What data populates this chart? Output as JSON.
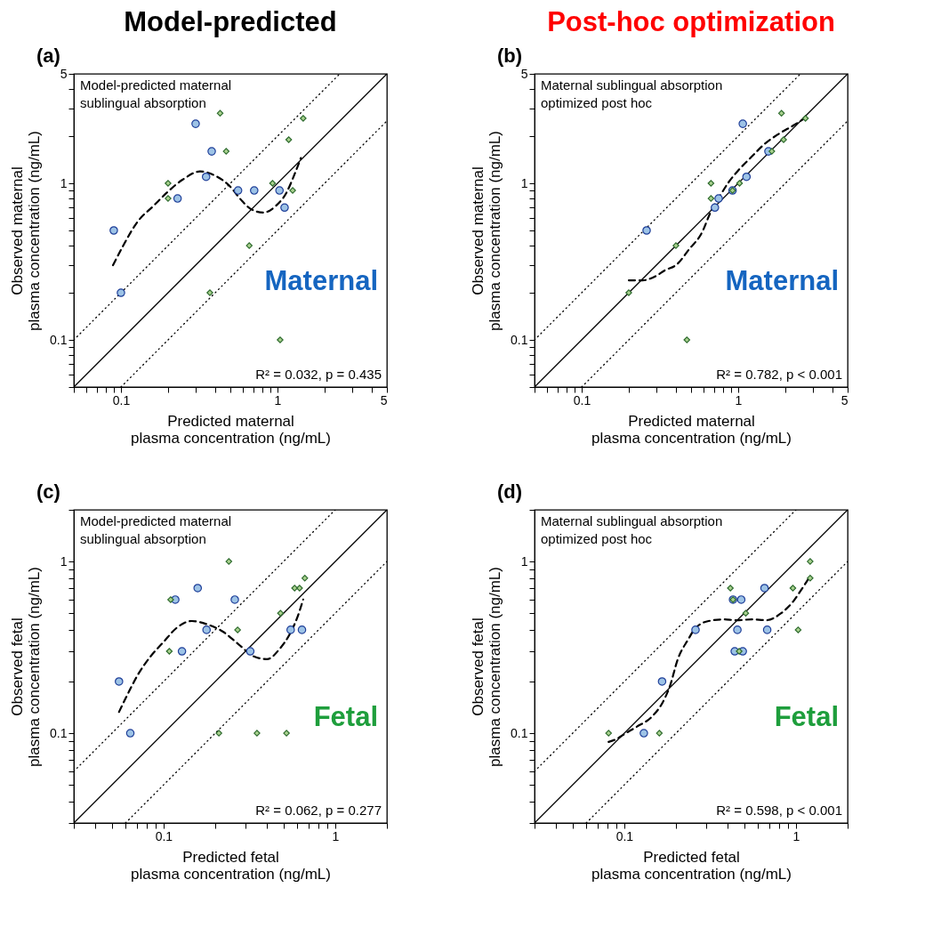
{
  "chart_data": [
    {
      "type": "scatter",
      "title": "Model-predicted",
      "xlabel": "Predicted maternal\nplasma concentration (ng/mL)",
      "ylabel": "Observed maternal\nplasma concentration (ng/mL)",
      "log": "xy",
      "xlim": [
        0.05,
        5
      ],
      "ylim": [
        0.05,
        5
      ],
      "xticks": [
        {
          "value": 0.05,
          "label": null
        },
        {
          "value": 0.06,
          "label": null
        },
        {
          "value": 0.07,
          "label": null
        },
        {
          "value": 0.08,
          "label": null
        },
        {
          "value": 0.09,
          "label": null
        },
        0.1,
        {
          "value": 0.2,
          "label": null
        },
        {
          "value": 0.3,
          "label": null
        },
        {
          "value": 0.4,
          "label": null
        },
        {
          "value": 0.5,
          "label": null
        },
        {
          "value": 0.6,
          "label": null
        },
        {
          "value": 0.7,
          "label": null
        },
        {
          "value": 0.8,
          "label": null
        },
        {
          "value": 0.9,
          "label": null
        },
        1,
        {
          "value": 2,
          "label": null
        },
        {
          "value": 3,
          "label": null
        },
        {
          "value": 4,
          "label": null
        },
        5
      ],
      "yticks": [
        {
          "value": 0.05,
          "label": null
        },
        {
          "value": 0.06,
          "label": null
        },
        {
          "value": 0.07,
          "label": null
        },
        {
          "value": 0.08,
          "label": null
        },
        {
          "value": 0.09,
          "label": null
        },
        0.1,
        {
          "value": 0.2,
          "label": null
        },
        {
          "value": 0.3,
          "label": null
        },
        {
          "value": 0.4,
          "label": null
        },
        {
          "value": 0.5,
          "label": null
        },
        {
          "value": 0.6,
          "label": null
        },
        {
          "value": 0.7,
          "label": null
        },
        {
          "value": 0.8,
          "label": null
        },
        {
          "value": 0.9,
          "label": null
        },
        1,
        {
          "value": 2,
          "label": null
        },
        {
          "value": 3,
          "label": null
        },
        {
          "value": 4,
          "label": null
        },
        5
      ],
      "annotations": [
        "(a)",
        "Model-predicted maternal\nsublingual absorption",
        "Maternal",
        "R² = 0.032, p = 0.435"
      ],
      "series": [
        {
          "type": "line",
          "color": "#000000",
          "line_style": "solid",
          "x": [
            0.05,
            5
          ],
          "values": [
            0.05,
            5
          ]
        },
        {
          "type": "line",
          "color": "#000000",
          "line_style": "dotted",
          "x": [
            0.05,
            2.5
          ],
          "values": [
            0.1,
            5
          ]
        },
        {
          "type": "line",
          "color": "#000000",
          "line_style": "dotted",
          "x": [
            0.1,
            5
          ],
          "values": [
            0.05,
            2.5
          ]
        },
        {
          "type": "line",
          "color": "#000000",
          "line_style": "dashed",
          "x": [
            0.089,
            0.102,
            0.128,
            0.162,
            0.196,
            0.246,
            0.32,
            0.406,
            0.49,
            0.595,
            0.668,
            0.81,
            0.98,
            1.14,
            1.28,
            1.41
          ],
          "values": [
            0.3,
            0.39,
            0.57,
            0.72,
            0.87,
            1.05,
            1.19,
            1.11,
            0.97,
            0.77,
            0.69,
            0.65,
            0.72,
            0.87,
            1.13,
            1.45
          ]
        },
        {
          "type": "scatter",
          "marker": "circle",
          "color": "#9dc3e6",
          "x": [
            0.09,
            0.1,
            0.23,
            0.3,
            0.35,
            0.38,
            0.56,
            0.71,
            1.03,
            1.11
          ],
          "values": [
            0.5,
            0.2,
            0.8,
            2.4,
            1.1,
            1.6,
            0.9,
            0.9,
            0.9,
            0.7
          ]
        },
        {
          "type": "scatter",
          "marker": "diamond",
          "color": "#a9d18e",
          "x": [
            0.2,
            0.2,
            0.43,
            0.47,
            0.66,
            0.37,
            0.93,
            1.04,
            1.18,
            1.25,
            1.46
          ],
          "values": [
            1.0,
            0.8,
            2.8,
            1.6,
            0.4,
            0.2,
            1.0,
            0.1,
            1.9,
            0.9,
            2.6
          ]
        }
      ]
    },
    {
      "type": "scatter",
      "title": "Post-hoc optimization",
      "xlabel": "Predicted maternal\nplasma concentration (ng/mL)",
      "ylabel": "Observed maternal\nplasma concentration (ng/mL)",
      "log": "xy",
      "xlim": [
        0.05,
        5
      ],
      "ylim": [
        0.05,
        5
      ],
      "xticks": [
        {
          "value": 0.05,
          "label": null
        },
        {
          "value": 0.06,
          "label": null
        },
        {
          "value": 0.07,
          "label": null
        },
        {
          "value": 0.08,
          "label": null
        },
        {
          "value": 0.09,
          "label": null
        },
        0.1,
        {
          "value": 0.2,
          "label": null
        },
        {
          "value": 0.3,
          "label": null
        },
        {
          "value": 0.4,
          "label": null
        },
        {
          "value": 0.5,
          "label": null
        },
        {
          "value": 0.6,
          "label": null
        },
        {
          "value": 0.7,
          "label": null
        },
        {
          "value": 0.8,
          "label": null
        },
        {
          "value": 0.9,
          "label": null
        },
        1,
        {
          "value": 2,
          "label": null
        },
        {
          "value": 3,
          "label": null
        },
        {
          "value": 4,
          "label": null
        },
        5
      ],
      "yticks": [
        {
          "value": 0.05,
          "label": null
        },
        {
          "value": 0.06,
          "label": null
        },
        {
          "value": 0.07,
          "label": null
        },
        {
          "value": 0.08,
          "label": null
        },
        {
          "value": 0.09,
          "label": null
        },
        0.1,
        {
          "value": 0.2,
          "label": null
        },
        {
          "value": 0.3,
          "label": null
        },
        {
          "value": 0.4,
          "label": null
        },
        {
          "value": 0.5,
          "label": null
        },
        {
          "value": 0.6,
          "label": null
        },
        {
          "value": 0.7,
          "label": null
        },
        {
          "value": 0.8,
          "label": null
        },
        {
          "value": 0.9,
          "label": null
        },
        1,
        {
          "value": 2,
          "label": null
        },
        {
          "value": 3,
          "label": null
        },
        {
          "value": 4,
          "label": null
        },
        5
      ],
      "annotations": [
        "(b)",
        "Maternal sublingual absorption\noptimized post hoc",
        "Maternal",
        "R² = 0.782, p < 0.001"
      ],
      "series": [
        {
          "type": "line",
          "color": "#000000",
          "line_style": "solid",
          "x": [
            0.05,
            5
          ],
          "values": [
            0.05,
            5
          ]
        },
        {
          "type": "line",
          "color": "#000000",
          "line_style": "dotted",
          "x": [
            0.05,
            2.5
          ],
          "values": [
            0.1,
            5
          ]
        },
        {
          "type": "line",
          "color": "#000000",
          "line_style": "dotted",
          "x": [
            0.1,
            5
          ],
          "values": [
            0.05,
            2.5
          ]
        },
        {
          "type": "line",
          "color": "#000000",
          "line_style": "dashed",
          "x": [
            0.2,
            0.245,
            0.285,
            0.345,
            0.4,
            0.487,
            0.59,
            0.66,
            0.77,
            0.865,
            1.01,
            1.22,
            1.48,
            1.79,
            2.25,
            2.69
          ],
          "values": [
            0.24,
            0.24,
            0.25,
            0.28,
            0.3,
            0.38,
            0.49,
            0.64,
            0.84,
            1.01,
            1.22,
            1.48,
            1.79,
            2.05,
            2.34,
            2.62
          ]
        },
        {
          "type": "scatter",
          "marker": "circle",
          "color": "#9dc3e6",
          "x": [
            0.26,
            0.71,
            0.75,
            0.92,
            1.13,
            1.07,
            1.56
          ],
          "values": [
            0.5,
            0.7,
            0.8,
            0.9,
            1.1,
            2.4,
            1.6
          ]
        },
        {
          "type": "scatter",
          "marker": "diamond",
          "color": "#a9d18e",
          "x": [
            0.2,
            0.4,
            0.47,
            0.67,
            0.67,
            0.92,
            1.02,
            1.64,
            1.89,
            1.95,
            2.69
          ],
          "values": [
            0.2,
            0.4,
            0.1,
            1.0,
            0.8,
            0.9,
            1.0,
            1.6,
            2.8,
            1.9,
            2.6
          ]
        }
      ]
    },
    {
      "type": "scatter",
      "xlabel": "Predicted fetal\nplasma concentration (ng/mL)",
      "ylabel": "Observed fetal\nplasma concentration (ng/mL)",
      "log": "xy",
      "xlim": [
        0.03,
        2
      ],
      "ylim": [
        0.03,
        2
      ],
      "xticks": [
        {
          "value": 0.03,
          "label": null
        },
        {
          "value": 0.04,
          "label": null
        },
        {
          "value": 0.05,
          "label": null
        },
        {
          "value": 0.06,
          "label": null
        },
        {
          "value": 0.07,
          "label": null
        },
        {
          "value": 0.08,
          "label": null
        },
        {
          "value": 0.09,
          "label": null
        },
        0.1,
        {
          "value": 0.2,
          "label": null
        },
        {
          "value": 0.3,
          "label": null
        },
        {
          "value": 0.4,
          "label": null
        },
        {
          "value": 0.5,
          "label": null
        },
        {
          "value": 0.6,
          "label": null
        },
        {
          "value": 0.7,
          "label": null
        },
        {
          "value": 0.8,
          "label": null
        },
        {
          "value": 0.9,
          "label": null
        },
        1,
        {
          "value": 2,
          "label": null
        }
      ],
      "yticks": [
        {
          "value": 0.03,
          "label": null
        },
        {
          "value": 0.04,
          "label": null
        },
        {
          "value": 0.05,
          "label": null
        },
        {
          "value": 0.06,
          "label": null
        },
        {
          "value": 0.07,
          "label": null
        },
        {
          "value": 0.08,
          "label": null
        },
        {
          "value": 0.09,
          "label": null
        },
        0.1,
        {
          "value": 0.2,
          "label": null
        },
        {
          "value": 0.3,
          "label": null
        },
        {
          "value": 0.4,
          "label": null
        },
        {
          "value": 0.5,
          "label": null
        },
        {
          "value": 0.6,
          "label": null
        },
        {
          "value": 0.7,
          "label": null
        },
        {
          "value": 0.8,
          "label": null
        },
        {
          "value": 0.9,
          "label": null
        },
        1,
        {
          "value": 2,
          "label": null
        }
      ],
      "annotations": [
        "(c)",
        "Model-predicted maternal\nsublingual absorption",
        "Fetal",
        "R² = 0.062, p = 0.277"
      ],
      "series": [
        {
          "type": "line",
          "color": "#000000",
          "line_style": "solid",
          "x": [
            0.03,
            2
          ],
          "values": [
            0.03,
            2
          ]
        },
        {
          "type": "line",
          "color": "#000000",
          "line_style": "dotted",
          "x": [
            0.03,
            1
          ],
          "values": [
            0.06,
            2
          ]
        },
        {
          "type": "line",
          "color": "#000000",
          "line_style": "dotted",
          "x": [
            0.06,
            2
          ],
          "values": [
            0.03,
            1
          ]
        },
        {
          "type": "line",
          "color": "#000000",
          "line_style": "dashed",
          "x": [
            0.055,
            0.062,
            0.071,
            0.084,
            0.1,
            0.119,
            0.146,
            0.18,
            0.222,
            0.273,
            0.336,
            0.4,
            0.475,
            0.545,
            0.605,
            0.65
          ],
          "values": [
            0.133,
            0.17,
            0.22,
            0.28,
            0.34,
            0.41,
            0.45,
            0.43,
            0.39,
            0.33,
            0.28,
            0.27,
            0.31,
            0.38,
            0.48,
            0.6
          ]
        },
        {
          "type": "scatter",
          "marker": "circle",
          "color": "#9dc3e6",
          "x": [
            0.055,
            0.064,
            0.117,
            0.128,
            0.158,
            0.178,
            0.26,
            0.32,
            0.55,
            0.64
          ],
          "values": [
            0.2,
            0.1,
            0.6,
            0.3,
            0.7,
            0.4,
            0.6,
            0.3,
            0.4,
            0.4
          ]
        },
        {
          "type": "scatter",
          "marker": "diamond",
          "color": "#a9d18e",
          "x": [
            0.108,
            0.11,
            0.24,
            0.27,
            0.21,
            0.35,
            0.52,
            0.48,
            0.58,
            0.62,
            0.665
          ],
          "values": [
            0.3,
            0.6,
            1.0,
            0.4,
            0.1,
            0.1,
            0.1,
            0.5,
            0.7,
            0.7,
            0.8
          ]
        }
      ]
    },
    {
      "type": "scatter",
      "xlabel": "Predicted fetal\nplasma concentration (ng/mL)",
      "ylabel": "Observed fetal\nplasma concentration (ng/mL)",
      "log": "xy",
      "xlim": [
        0.03,
        2
      ],
      "ylim": [
        0.03,
        2
      ],
      "xticks": [
        {
          "value": 0.03,
          "label": null
        },
        {
          "value": 0.04,
          "label": null
        },
        {
          "value": 0.05,
          "label": null
        },
        {
          "value": 0.06,
          "label": null
        },
        {
          "value": 0.07,
          "label": null
        },
        {
          "value": 0.08,
          "label": null
        },
        {
          "value": 0.09,
          "label": null
        },
        0.1,
        {
          "value": 0.2,
          "label": null
        },
        {
          "value": 0.3,
          "label": null
        },
        {
          "value": 0.4,
          "label": null
        },
        {
          "value": 0.5,
          "label": null
        },
        {
          "value": 0.6,
          "label": null
        },
        {
          "value": 0.7,
          "label": null
        },
        {
          "value": 0.8,
          "label": null
        },
        {
          "value": 0.9,
          "label": null
        },
        1,
        {
          "value": 2,
          "label": null
        }
      ],
      "yticks": [
        {
          "value": 0.03,
          "label": null
        },
        {
          "value": 0.04,
          "label": null
        },
        {
          "value": 0.05,
          "label": null
        },
        {
          "value": 0.06,
          "label": null
        },
        {
          "value": 0.07,
          "label": null
        },
        {
          "value": 0.08,
          "label": null
        },
        {
          "value": 0.09,
          "label": null
        },
        0.1,
        {
          "value": 0.2,
          "label": null
        },
        {
          "value": 0.3,
          "label": null
        },
        {
          "value": 0.4,
          "label": null
        },
        {
          "value": 0.5,
          "label": null
        },
        {
          "value": 0.6,
          "label": null
        },
        {
          "value": 0.7,
          "label": null
        },
        {
          "value": 0.8,
          "label": null
        },
        {
          "value": 0.9,
          "label": null
        },
        1,
        {
          "value": 2,
          "label": null
        }
      ],
      "annotations": [
        "(d)",
        "Maternal sublingual absorption\noptimized post hoc",
        "Fetal",
        "R² = 0.598, p < 0.001"
      ],
      "series": [
        {
          "type": "line",
          "color": "#000000",
          "line_style": "solid",
          "x": [
            0.03,
            2
          ],
          "values": [
            0.03,
            2
          ]
        },
        {
          "type": "line",
          "color": "#000000",
          "line_style": "dotted",
          "x": [
            0.03,
            1
          ],
          "values": [
            0.06,
            2
          ]
        },
        {
          "type": "line",
          "color": "#000000",
          "line_style": "dotted",
          "x": [
            0.06,
            2
          ],
          "values": [
            0.03,
            1
          ]
        },
        {
          "type": "line",
          "color": "#000000",
          "line_style": "dashed",
          "x": [
            0.081,
            0.089,
            0.102,
            0.118,
            0.145,
            0.166,
            0.185,
            0.205,
            0.235,
            0.26,
            0.31,
            0.38,
            0.45,
            0.56,
            0.67,
            0.82,
            0.97,
            1.07,
            1.18
          ],
          "values": [
            0.089,
            0.092,
            0.1,
            0.109,
            0.125,
            0.149,
            0.19,
            0.27,
            0.35,
            0.41,
            0.45,
            0.46,
            0.455,
            0.46,
            0.455,
            0.5,
            0.59,
            0.68,
            0.79
          ]
        },
        {
          "type": "scatter",
          "marker": "circle",
          "color": "#9dc3e6",
          "x": [
            0.13,
            0.166,
            0.26,
            0.43,
            0.48,
            0.456,
            0.44,
            0.49,
            0.656,
            0.68
          ],
          "values": [
            0.1,
            0.2,
            0.4,
            0.6,
            0.6,
            0.4,
            0.3,
            0.3,
            0.7,
            0.4
          ]
        },
        {
          "type": "scatter",
          "marker": "diamond",
          "color": "#a9d18e",
          "x": [
            0.081,
            0.16,
            0.415,
            0.43,
            0.467,
            0.51,
            0.96,
            1.03,
            1.21,
            1.21
          ],
          "values": [
            0.1,
            0.1,
            0.7,
            0.6,
            0.3,
            0.5,
            0.7,
            0.4,
            1.0,
            0.8
          ]
        }
      ]
    }
  ]
}
